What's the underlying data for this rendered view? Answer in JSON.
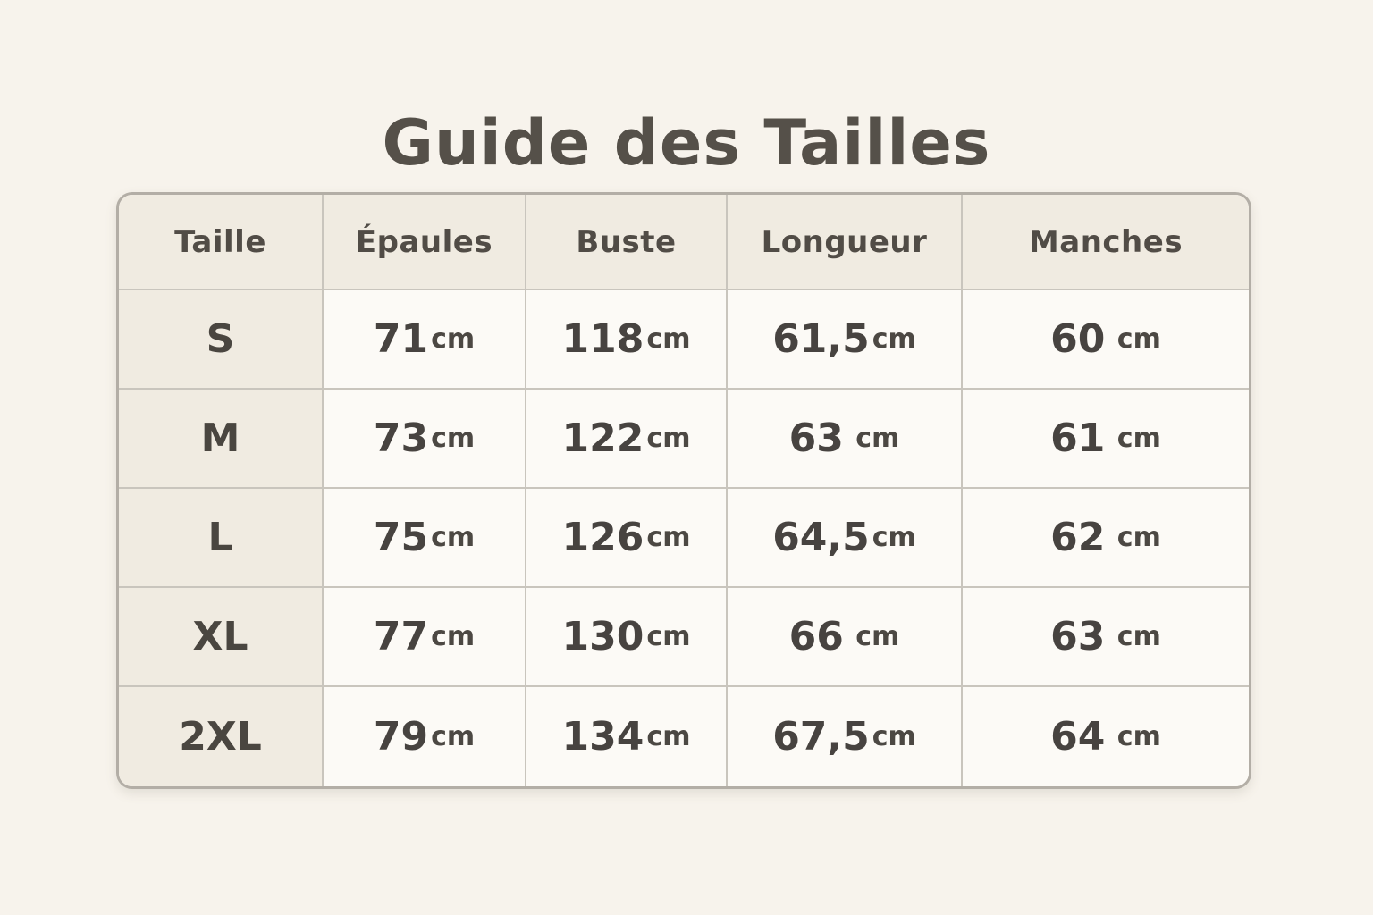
{
  "title": "Guide des Tailles",
  "colors": {
    "page_background": "#f7f3ec",
    "header_and_size_column_background": "#f0ebe1",
    "cell_background": "#fcfaf6",
    "border": "#b3aea6",
    "inner_border": "#c9c5bd",
    "text": "#4c4842"
  },
  "table": {
    "headers": [
      "Taille",
      "Épaules",
      "Buste",
      "Longueur",
      "Manches"
    ],
    "rows": [
      {
        "size": "S",
        "cells": [
          {
            "v": "71",
            "u": "cm"
          },
          {
            "v": "118",
            "u": "cm"
          },
          {
            "v": "61,5",
            "u": "cm"
          },
          {
            "v": "60",
            "u": " cm"
          }
        ]
      },
      {
        "size": "M",
        "cells": [
          {
            "v": "73",
            "u": "cm"
          },
          {
            "v": "122",
            "u": "cm"
          },
          {
            "v": "63",
            "u": " cm"
          },
          {
            "v": "61",
            "u": " cm"
          }
        ]
      },
      {
        "size": "L",
        "cells": [
          {
            "v": "75",
            "u": "cm"
          },
          {
            "v": "126",
            "u": "cm"
          },
          {
            "v": "64,5",
            "u": "cm"
          },
          {
            "v": "62",
            "u": " cm"
          }
        ]
      },
      {
        "size": "XL",
        "cells": [
          {
            "v": "77",
            "u": "cm"
          },
          {
            "v": "130",
            "u": "cm"
          },
          {
            "v": "66",
            "u": " cm"
          },
          {
            "v": "63",
            "u": " cm"
          }
        ]
      },
      {
        "size": "2XL",
        "cells": [
          {
            "v": "79",
            "u": "cm"
          },
          {
            "v": "134",
            "u": "cm"
          },
          {
            "v": "67,5",
            "u": "cm"
          },
          {
            "v": "64",
            "u": " cm"
          }
        ]
      }
    ]
  },
  "chart_data": {
    "type": "table",
    "title": "Guide des Tailles",
    "columns": [
      "Taille",
      "Épaules",
      "Buste",
      "Longueur",
      "Manches"
    ],
    "rows": [
      [
        "S",
        "71cm",
        "118cm",
        "61,5cm",
        "60 cm"
      ],
      [
        "M",
        "73cm",
        "122cm",
        "63 cm",
        "61 cm"
      ],
      [
        "L",
        "75cm",
        "126cm",
        "64,5cm",
        "62 cm"
      ],
      [
        "XL",
        "77cm",
        "130cm",
        "66 cm",
        "63 cm"
      ],
      [
        "2XL",
        "79cm",
        "134cm",
        "67,5cm",
        "64 cm"
      ]
    ]
  }
}
